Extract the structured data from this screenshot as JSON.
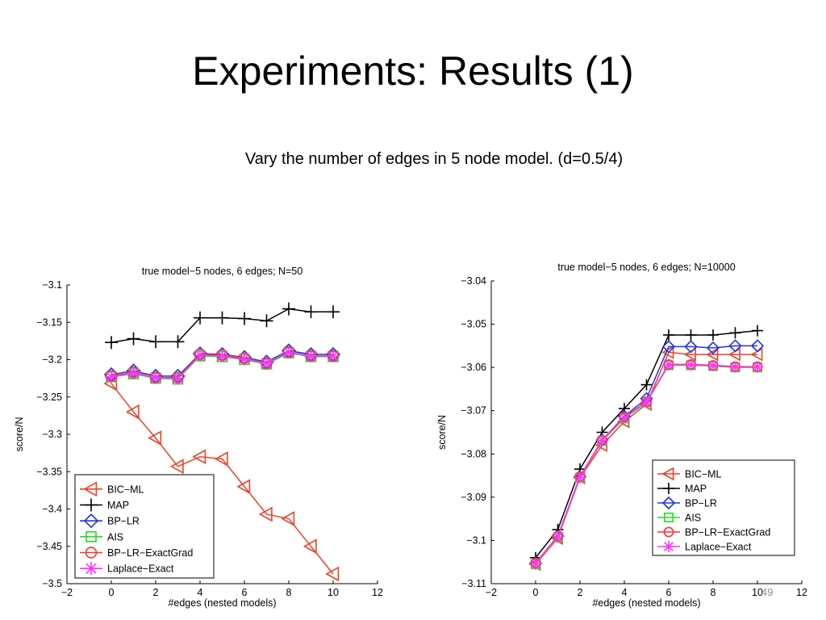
{
  "slide": {
    "title": "Experiments: Results (1)",
    "subtitle": "Vary the number of edges in 5 node model. (d=0.5/4)",
    "page_number": "49"
  },
  "styles": {
    "BIC−ML": {
      "color": "#e8432a",
      "marker": "triangle-left"
    },
    "MAP": {
      "color": "#000000",
      "marker": "plus"
    },
    "BP−LR": {
      "color": "#2233e0",
      "marker": "diamond"
    },
    "AIS": {
      "color": "#22dd22",
      "marker": "square"
    },
    "BP−LR−ExactGrad": {
      "color": "#ff3030",
      "marker": "circle"
    },
    "Laplace−Exact": {
      "color": "#ff33ff",
      "marker": "asterisk"
    }
  },
  "chart_data": [
    {
      "type": "line",
      "title": "true model−5 nodes, 6 edges; N=50",
      "xlabel": "#edges (nested models)",
      "ylabel": "score/N",
      "xlim": [
        -2,
        12
      ],
      "ylim": [
        -3.5,
        -3.1
      ],
      "xticks": [
        "−2",
        "0",
        "2",
        "4",
        "6",
        "8",
        "10",
        "12"
      ],
      "yticks": [
        "−3.1",
        "−3.15",
        "−3.2",
        "−3.25",
        "−3.3",
        "−3.35",
        "−3.4",
        "−3.45",
        "−3.5"
      ],
      "legend_position": "bottom-left",
      "x": [
        0,
        1,
        2,
        3,
        4,
        5,
        6,
        7,
        8,
        9,
        10
      ],
      "series": [
        {
          "name": "BIC−ML",
          "values": [
            -3.232,
            -3.27,
            -3.305,
            -3.343,
            -3.33,
            -3.333,
            -3.37,
            -3.407,
            -3.413,
            -3.45,
            -3.487
          ]
        },
        {
          "name": "MAP",
          "values": [
            -3.177,
            -3.172,
            -3.176,
            -3.176,
            -3.144,
            -3.144,
            -3.145,
            -3.148,
            -3.132,
            -3.136,
            -3.136
          ]
        },
        {
          "name": "BP−LR",
          "values": [
            -3.22,
            -3.215,
            -3.222,
            -3.222,
            -3.192,
            -3.193,
            -3.197,
            -3.203,
            -3.188,
            -3.193,
            -3.193
          ]
        },
        {
          "name": "AIS",
          "values": [
            -3.223,
            -3.219,
            -3.225,
            -3.226,
            -3.195,
            -3.196,
            -3.2,
            -3.206,
            -3.191,
            -3.196,
            -3.196
          ]
        },
        {
          "name": "BP−LR−ExactGrad",
          "values": [
            -3.222,
            -3.217,
            -3.224,
            -3.224,
            -3.193,
            -3.194,
            -3.198,
            -3.205,
            -3.19,
            -3.195,
            -3.195
          ]
        },
        {
          "name": "Laplace−Exact",
          "values": [
            -3.223,
            -3.218,
            -3.224,
            -3.225,
            -3.194,
            -3.195,
            -3.199,
            -3.205,
            -3.19,
            -3.195,
            -3.195
          ]
        }
      ]
    },
    {
      "type": "line",
      "title": "true model−5 nodes, 6 edges; N=10000",
      "xlabel": "#edges (nested models)",
      "ylabel": "score/N",
      "xlim": [
        -2,
        12
      ],
      "ylim": [
        -3.11,
        -3.04
      ],
      "xticks": [
        "−2",
        "0",
        "2",
        "4",
        "6",
        "8",
        "10",
        "12"
      ],
      "yticks": [
        "−3.04",
        "−3.05",
        "−3.06",
        "−3.07",
        "−3.08",
        "−3.09",
        "−3.1",
        "−3.11"
      ],
      "legend_position": "bottom-right",
      "x": [
        0,
        1,
        2,
        3,
        4,
        5,
        6,
        7,
        8,
        9,
        10
      ],
      "series": [
        {
          "name": "BIC−ML",
          "values": [
            -3.1055,
            -3.0995,
            -3.0855,
            -3.078,
            -3.0725,
            -3.0685,
            -3.0565,
            -3.057,
            -3.057,
            -3.057,
            -3.057
          ]
        },
        {
          "name": "MAP",
          "values": [
            -3.104,
            -3.0975,
            -3.0835,
            -3.075,
            -3.0695,
            -3.064,
            -3.0525,
            -3.0525,
            -3.0525,
            -3.052,
            -3.0515
          ]
        },
        {
          "name": "BP−LR",
          "values": [
            -3.1053,
            -3.099,
            -3.0853,
            -3.0768,
            -3.0713,
            -3.0672,
            -3.0552,
            -3.0552,
            -3.0555,
            -3.055,
            -3.055
          ]
        },
        {
          "name": "AIS",
          "values": [
            -3.1055,
            -3.0993,
            -3.0855,
            -3.077,
            -3.0718,
            -3.0681,
            -3.0595,
            -3.0595,
            -3.0597,
            -3.06,
            -3.06
          ]
        },
        {
          "name": "BP−LR−ExactGrad",
          "values": [
            -3.1052,
            -3.099,
            -3.0852,
            -3.0768,
            -3.0715,
            -3.0679,
            -3.0593,
            -3.0593,
            -3.0595,
            -3.0598,
            -3.0598
          ]
        },
        {
          "name": "Laplace−Exact",
          "values": [
            -3.1054,
            -3.0992,
            -3.0854,
            -3.0769,
            -3.0716,
            -3.068,
            -3.0594,
            -3.0594,
            -3.0596,
            -3.0599,
            -3.0599
          ]
        }
      ]
    }
  ]
}
